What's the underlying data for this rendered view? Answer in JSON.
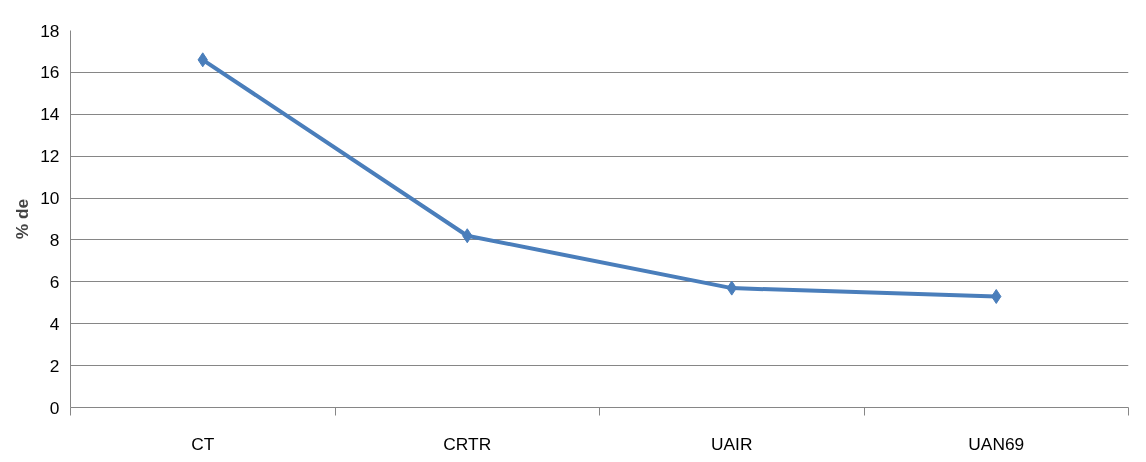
{
  "chart_data": {
    "type": "line",
    "ylabel": "% de",
    "categories": [
      "CT",
      "CRTR",
      "UAIR",
      "UAN69"
    ],
    "series": [
      {
        "color": "#4a7ebb",
        "values": [
          16.6,
          8.2,
          5.7,
          5.3
        ]
      }
    ],
    "ylim": [
      0,
      18
    ],
    "yticks": [
      0,
      2,
      4,
      6,
      8,
      10,
      12,
      14,
      16,
      18
    ],
    "grid": "y",
    "marker": "diamond",
    "line_style": "solid"
  }
}
